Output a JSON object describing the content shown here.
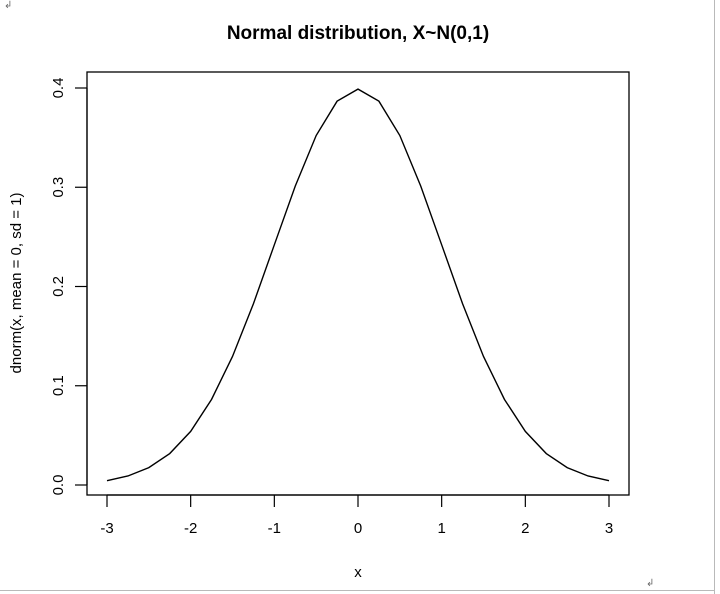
{
  "chart_data": {
    "type": "line",
    "title": "Normal distribution, X~N(0,1)",
    "xlabel": "x",
    "ylabel": "dnorm(x, mean = 0, sd = 1)",
    "xlim": [
      -3,
      3
    ],
    "ylim": [
      0,
      0.4
    ],
    "x_ticks": [
      "-3",
      "-2",
      "-1",
      "0",
      "1",
      "2",
      "3"
    ],
    "y_ticks": [
      "0.0",
      "0.1",
      "0.2",
      "0.3",
      "0.4"
    ],
    "grid": false,
    "series": [
      {
        "x": [
          -3.0,
          -2.75,
          -2.5,
          -2.25,
          -2.0,
          -1.75,
          -1.5,
          -1.25,
          -1.0,
          -0.75,
          -0.5,
          -0.25,
          0.0,
          0.25,
          0.5,
          0.75,
          1.0,
          1.25,
          1.5,
          1.75,
          2.0,
          2.25,
          2.5,
          2.75,
          3.0
        ],
        "values": [
          0.0044,
          0.0091,
          0.0175,
          0.0317,
          0.054,
          0.0863,
          0.1295,
          0.1826,
          0.242,
          0.3011,
          0.3521,
          0.3867,
          0.3989,
          0.3867,
          0.3521,
          0.3011,
          0.242,
          0.1826,
          0.1295,
          0.0863,
          0.054,
          0.0317,
          0.0175,
          0.0091,
          0.0044
        ],
        "color": "#000000"
      }
    ]
  },
  "marks": {
    "corner_top_left": "↲",
    "corner_bottom_right": "↲"
  }
}
